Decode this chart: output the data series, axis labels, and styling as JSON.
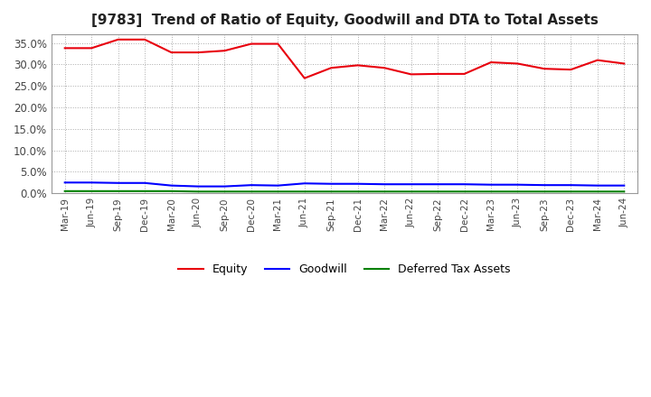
{
  "title": "[9783]  Trend of Ratio of Equity, Goodwill and DTA to Total Assets",
  "labels": [
    "Mar-19",
    "Jun-19",
    "Sep-19",
    "Dec-19",
    "Mar-20",
    "Jun-20",
    "Sep-20",
    "Dec-20",
    "Mar-21",
    "Jun-21",
    "Sep-21",
    "Dec-21",
    "Mar-22",
    "Jun-22",
    "Sep-22",
    "Dec-22",
    "Mar-23",
    "Jun-23",
    "Sep-23",
    "Dec-23",
    "Mar-24",
    "Jun-24"
  ],
  "equity": [
    33.8,
    33.8,
    35.8,
    35.8,
    32.8,
    32.8,
    33.2,
    34.8,
    34.8,
    26.8,
    29.2,
    29.8,
    29.2,
    27.7,
    27.8,
    27.8,
    30.5,
    30.2,
    29.0,
    28.8,
    31.0,
    30.2
  ],
  "goodwill": [
    2.5,
    2.5,
    2.4,
    2.4,
    1.8,
    1.6,
    1.6,
    1.9,
    1.8,
    2.3,
    2.2,
    2.2,
    2.1,
    2.1,
    2.1,
    2.1,
    2.0,
    2.0,
    1.9,
    1.9,
    1.8,
    1.8
  ],
  "dta": [
    0.5,
    0.5,
    0.5,
    0.5,
    0.5,
    0.4,
    0.4,
    0.4,
    0.4,
    0.4,
    0.4,
    0.4,
    0.4,
    0.4,
    0.4,
    0.4,
    0.4,
    0.4,
    0.4,
    0.4,
    0.4,
    0.4
  ],
  "equity_color": "#e8000d",
  "goodwill_color": "#0000ff",
  "dta_color": "#008000",
  "bg_color": "#ffffff",
  "plot_bg_color": "#ffffff",
  "grid_color": "#aaaaaa",
  "ylim": [
    0,
    37
  ],
  "yticks": [
    0,
    5,
    10,
    15,
    20,
    25,
    30,
    35
  ],
  "title_fontsize": 11,
  "legend_labels": [
    "Equity",
    "Goodwill",
    "Deferred Tax Assets"
  ]
}
